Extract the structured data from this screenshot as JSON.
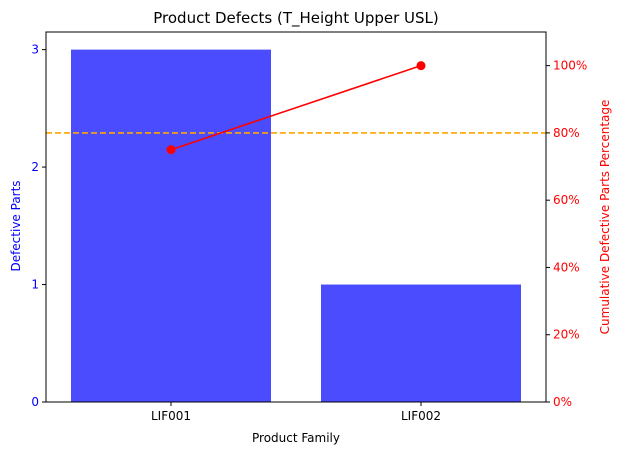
{
  "chart_data": {
    "type": "bar",
    "title": "Product Defects (T_Height Upper USL)",
    "xlabel": "Product Family",
    "ylabel": "Defective Parts",
    "y2label": "Cumulative Defective Parts Percentage",
    "categories": [
      "LIF001",
      "LIF002"
    ],
    "series": [
      {
        "values": [
          3,
          1
        ],
        "color": "#4c4cff",
        "type": "bar",
        "axis": "left"
      },
      {
        "values": [
          75,
          100
        ],
        "color": "#ff0000",
        "type": "line",
        "axis": "right"
      }
    ],
    "threshold": {
      "value": 80,
      "color": "#ffa500",
      "style": "dashed",
      "axis": "right"
    },
    "ylim": [
      0,
      3.15
    ],
    "y2lim": [
      0,
      110
    ],
    "yticks": [
      0,
      1,
      2,
      3
    ],
    "y2ticks": [
      0,
      20,
      40,
      60,
      80,
      100
    ],
    "y2tick_labels": [
      "0%",
      "20%",
      "40%",
      "60%",
      "80%",
      "100%"
    ],
    "left_axis_color": "#0000ff",
    "right_axis_color": "#ff0000",
    "grid": false
  }
}
